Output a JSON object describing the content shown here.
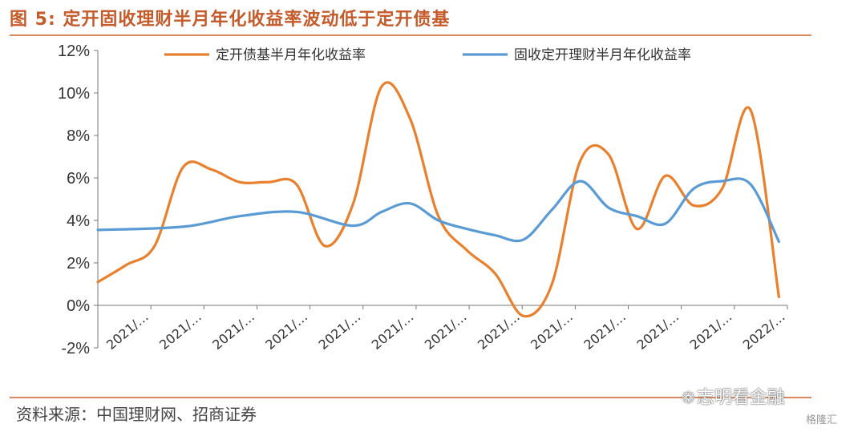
{
  "figure": {
    "title": "图 5:  定开固收理财半月年化收益率波动低于定开债基",
    "source": "资料来源：中国理财网、招商证券"
  },
  "watermark": {
    "icon": "wechat-icon",
    "text1": "志明看金融",
    "text2": "格隆汇"
  },
  "chart_data": {
    "type": "line",
    "ylim": [
      -2,
      12
    ],
    "yticks": [
      "-2%",
      "0%",
      "2%",
      "4%",
      "6%",
      "8%",
      "10%",
      "12%"
    ],
    "ytick_values": [
      -2,
      0,
      2,
      4,
      6,
      8,
      10,
      12
    ],
    "x_tick_labels": [
      "2021/…",
      "2021/…",
      "2021/…",
      "2021/…",
      "2021/…",
      "2021/…",
      "2021/…",
      "2021/…",
      "2021/…",
      "2021/…",
      "2021/…",
      "2021/…",
      "2022/…"
    ],
    "x_periods": 26,
    "legend_position": "top",
    "series": [
      {
        "name": "定开债基半月年化收益率",
        "color": "#e8802e",
        "points": [
          [
            0,
            1.1
          ],
          [
            1,
            1.9
          ],
          [
            2,
            2.8
          ],
          [
            3,
            6.5
          ],
          [
            4,
            6.4
          ],
          [
            5,
            5.8
          ],
          [
            6,
            5.8
          ],
          [
            7,
            5.7
          ],
          [
            8,
            2.8
          ],
          [
            9,
            4.8
          ],
          [
            10,
            10.3
          ],
          [
            11,
            8.8
          ],
          [
            12,
            4.2
          ],
          [
            13,
            2.6
          ],
          [
            14,
            1.5
          ],
          [
            15,
            -0.5
          ],
          [
            16,
            1.0
          ],
          [
            17,
            6.8
          ],
          [
            18,
            7.1
          ],
          [
            19,
            3.6
          ],
          [
            20,
            6.1
          ],
          [
            21,
            4.7
          ],
          [
            22,
            5.5
          ],
          [
            23,
            9.2
          ],
          [
            24,
            0.4
          ]
        ]
      },
      {
        "name": "固收定开理财半月年化收益率",
        "color": "#5b9bd5",
        "points": [
          [
            0,
            3.55
          ],
          [
            3,
            3.7
          ],
          [
            5,
            4.2
          ],
          [
            7,
            4.4
          ],
          [
            9,
            3.75
          ],
          [
            10,
            4.4
          ],
          [
            11,
            4.8
          ],
          [
            12,
            4.0
          ],
          [
            13,
            3.6
          ],
          [
            14,
            3.3
          ],
          [
            15,
            3.1
          ],
          [
            16,
            4.5
          ],
          [
            17,
            5.85
          ],
          [
            18,
            4.6
          ],
          [
            19,
            4.2
          ],
          [
            20,
            3.85
          ],
          [
            21,
            5.5
          ],
          [
            22,
            5.85
          ],
          [
            23,
            5.7
          ],
          [
            24,
            3.0
          ]
        ]
      }
    ]
  }
}
